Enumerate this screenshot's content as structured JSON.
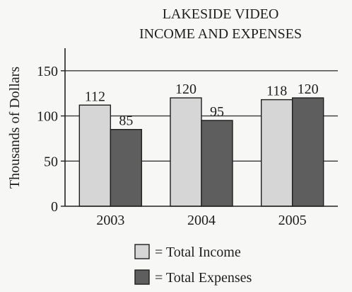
{
  "chart_data": {
    "type": "bar",
    "title": [
      "LAKESIDE VIDEO",
      "INCOME AND EXPENSES"
    ],
    "ylabel": "Thousands of Dollars",
    "xlabel": "",
    "ylim": [
      0,
      175
    ],
    "yticks": [
      0,
      50,
      100,
      150
    ],
    "grid": "horizontal",
    "legend_placement": "bottom-right",
    "categories": [
      "2003",
      "2004",
      "2005"
    ],
    "series": [
      {
        "name": "= Total Income",
        "values": [
          112,
          120,
          118
        ],
        "color": "#d6d6d6"
      },
      {
        "name": "= Total Expenses",
        "values": [
          85,
          95,
          120
        ],
        "color": "#5e5e5e"
      }
    ]
  }
}
